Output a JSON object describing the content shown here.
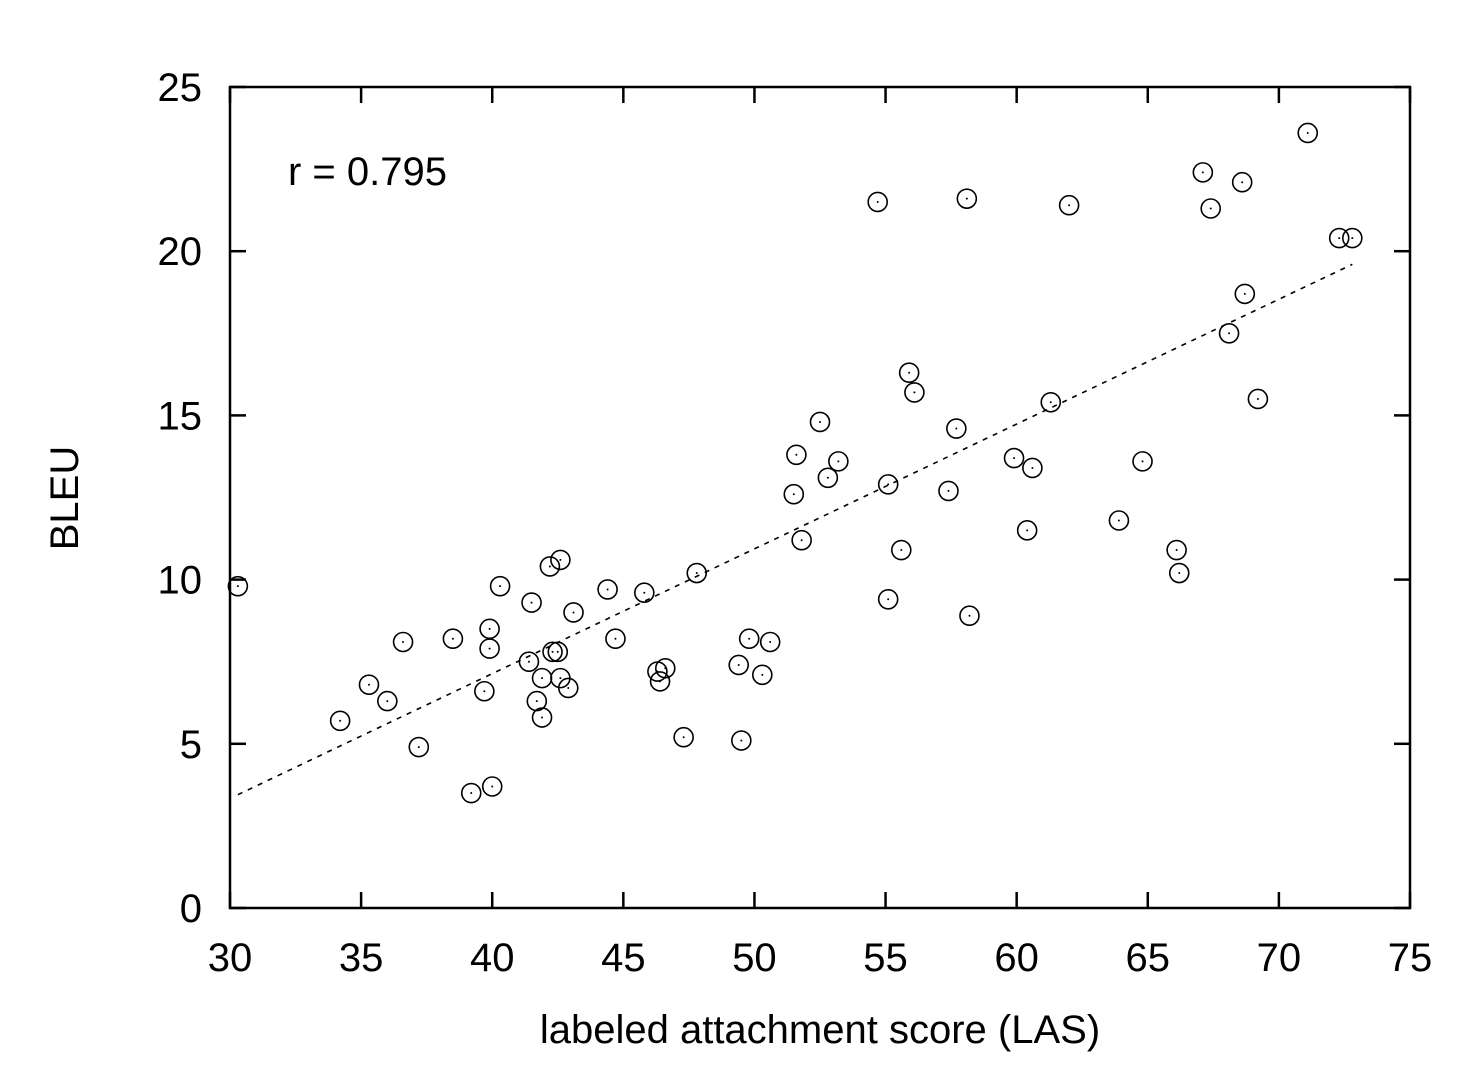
{
  "chart_data": {
    "type": "scatter",
    "xlabel": "labeled attachment score (LAS)",
    "ylabel": "BLEU",
    "xlim": [
      30,
      75
    ],
    "ylim": [
      0,
      25
    ],
    "xticks": [
      30,
      35,
      40,
      45,
      50,
      55,
      60,
      65,
      70,
      75
    ],
    "yticks": [
      0,
      5,
      10,
      15,
      20,
      25
    ],
    "grid": false,
    "annotation": "r =  0.795",
    "trendline": {
      "style": "dotted",
      "x": [
        30.3,
        72.8
      ],
      "y": [
        3.45,
        19.6
      ]
    },
    "points": [
      [
        30.3,
        9.8
      ],
      [
        34.2,
        5.7
      ],
      [
        35.3,
        6.8
      ],
      [
        36.0,
        6.3
      ],
      [
        36.6,
        8.1
      ],
      [
        37.2,
        4.9
      ],
      [
        38.5,
        8.2
      ],
      [
        39.2,
        3.5
      ],
      [
        39.7,
        6.6
      ],
      [
        39.9,
        8.5
      ],
      [
        39.9,
        7.9
      ],
      [
        40.0,
        3.7
      ],
      [
        40.3,
        9.8
      ],
      [
        41.4,
        7.5
      ],
      [
        41.5,
        9.3
      ],
      [
        41.7,
        6.3
      ],
      [
        41.9,
        7.0
      ],
      [
        41.9,
        5.8
      ],
      [
        42.2,
        10.4
      ],
      [
        42.3,
        7.8
      ],
      [
        42.5,
        7.8
      ],
      [
        42.6,
        10.6
      ],
      [
        42.6,
        7.0
      ],
      [
        42.9,
        6.7
      ],
      [
        43.1,
        9.0
      ],
      [
        44.4,
        9.7
      ],
      [
        44.7,
        8.2
      ],
      [
        45.8,
        9.6
      ],
      [
        46.3,
        7.2
      ],
      [
        46.4,
        6.9
      ],
      [
        46.6,
        7.3
      ],
      [
        47.3,
        5.2
      ],
      [
        47.8,
        10.2
      ],
      [
        49.4,
        7.4
      ],
      [
        49.5,
        5.1
      ],
      [
        49.8,
        8.2
      ],
      [
        50.3,
        7.1
      ],
      [
        50.6,
        8.1
      ],
      [
        51.5,
        12.6
      ],
      [
        51.6,
        13.8
      ],
      [
        51.8,
        11.2
      ],
      [
        52.5,
        14.8
      ],
      [
        52.8,
        13.1
      ],
      [
        53.2,
        13.6
      ],
      [
        54.7,
        21.5
      ],
      [
        55.1,
        9.4
      ],
      [
        55.1,
        12.9
      ],
      [
        55.6,
        10.9
      ],
      [
        55.9,
        16.3
      ],
      [
        56.1,
        15.7
      ],
      [
        57.4,
        12.7
      ],
      [
        57.7,
        14.6
      ],
      [
        58.1,
        21.6
      ],
      [
        58.2,
        8.9
      ],
      [
        59.9,
        13.7
      ],
      [
        60.4,
        11.5
      ],
      [
        60.6,
        13.4
      ],
      [
        61.3,
        15.4
      ],
      [
        62.0,
        21.4
      ],
      [
        63.9,
        11.8
      ],
      [
        64.8,
        13.6
      ],
      [
        66.1,
        10.9
      ],
      [
        66.2,
        10.2
      ],
      [
        67.1,
        22.4
      ],
      [
        67.4,
        21.3
      ],
      [
        68.1,
        17.5
      ],
      [
        68.6,
        22.1
      ],
      [
        68.7,
        18.7
      ],
      [
        69.2,
        15.5
      ],
      [
        71.1,
        23.6
      ],
      [
        72.3,
        20.4
      ],
      [
        72.8,
        20.4
      ]
    ]
  }
}
